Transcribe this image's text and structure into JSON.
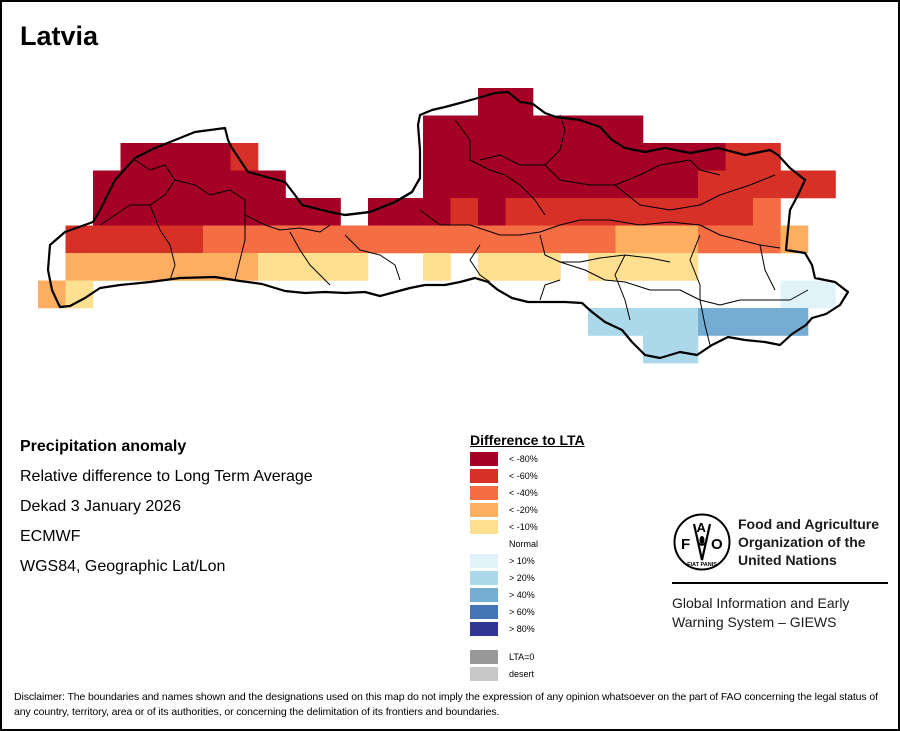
{
  "map": {
    "title": "Latvia",
    "grid_cols": 30,
    "grid_rows": 10,
    "class_colors": {
      "lt80": "#a50026",
      "lt60": "#d73027",
      "lt40": "#f46d43",
      "lt20": "#fdae61",
      "lt10": "#fee090",
      "gt10": "#e0f3f8",
      "gt20": "#abd9e9",
      "gt40": "#74add1",
      "gt60": "#4575b4",
      "gt80": "#313695",
      "lta0": "#999999",
      "desert": "#c8c8c8"
    },
    "cells": [
      {
        "row": 0,
        "cols": [
          16,
          17
        ],
        "class": "lt80"
      },
      {
        "row": 1,
        "cols": [
          14,
          21
        ],
        "class": "lt80"
      },
      {
        "row": 2,
        "cols": [
          3,
          6
        ],
        "class": "lt80"
      },
      {
        "row": 2,
        "cols": [
          7,
          7
        ],
        "class": "lt60"
      },
      {
        "row": 2,
        "cols": [
          14,
          24
        ],
        "class": "lt80"
      },
      {
        "row": 2,
        "cols": [
          25,
          26
        ],
        "class": "lt60"
      },
      {
        "row": 3,
        "cols": [
          2,
          8
        ],
        "class": "lt80"
      },
      {
        "row": 3,
        "cols": [
          14,
          23
        ],
        "class": "lt80"
      },
      {
        "row": 3,
        "cols": [
          24,
          28
        ],
        "class": "lt60"
      },
      {
        "row": 4,
        "cols": [
          2,
          10
        ],
        "class": "lt80"
      },
      {
        "row": 4,
        "cols": [
          12,
          14
        ],
        "class": "lt80"
      },
      {
        "row": 4,
        "cols": [
          15,
          15
        ],
        "class": "lt60"
      },
      {
        "row": 4,
        "cols": [
          16,
          16
        ],
        "class": "lt80"
      },
      {
        "row": 4,
        "cols": [
          17,
          25
        ],
        "class": "lt60"
      },
      {
        "row": 4,
        "cols": [
          26,
          26
        ],
        "class": "lt40"
      },
      {
        "row": 5,
        "cols": [
          1,
          5
        ],
        "class": "lt60"
      },
      {
        "row": 5,
        "cols": [
          6,
          20
        ],
        "class": "lt40"
      },
      {
        "row": 5,
        "cols": [
          21,
          23
        ],
        "class": "lt20"
      },
      {
        "row": 5,
        "cols": [
          24,
          26
        ],
        "class": "lt40"
      },
      {
        "row": 5,
        "cols": [
          27,
          27
        ],
        "class": "lt20"
      },
      {
        "row": 6,
        "cols": [
          1,
          7
        ],
        "class": "lt20"
      },
      {
        "row": 6,
        "cols": [
          8,
          11
        ],
        "class": "lt10"
      },
      {
        "row": 6,
        "cols": [
          14,
          14
        ],
        "class": "lt10"
      },
      {
        "row": 6,
        "cols": [
          16,
          18
        ],
        "class": "lt10"
      },
      {
        "row": 6,
        "cols": [
          20,
          23
        ],
        "class": "lt10"
      },
      {
        "row": 7,
        "cols": [
          0,
          0
        ],
        "class": "lt20"
      },
      {
        "row": 7,
        "cols": [
          1,
          1
        ],
        "class": "lt10"
      },
      {
        "row": 7,
        "cols": [
          27,
          28
        ],
        "class": "gt10"
      },
      {
        "row": 8,
        "cols": [
          20,
          23
        ],
        "class": "gt20"
      },
      {
        "row": 8,
        "cols": [
          24,
          27
        ],
        "class": "gt40"
      },
      {
        "row": 9,
        "cols": [
          22,
          23
        ],
        "class": "gt20"
      }
    ]
  },
  "info": {
    "heading": "Precipitation anomaly",
    "subtitle": "Relative difference to Long Term Average",
    "period": "Dekad 3 January 2026",
    "source": "ECMWF",
    "projection": "WGS84, Geographic Lat/Lon"
  },
  "legend": {
    "title": "Difference to LTA",
    "items": [
      {
        "label": "< -80%",
        "color": "#a50026"
      },
      {
        "label": "< -60%",
        "color": "#d73027"
      },
      {
        "label": "< -40%",
        "color": "#f46d43"
      },
      {
        "label": "< -20%",
        "color": "#fdae61"
      },
      {
        "label": "< -10%",
        "color": "#fee090"
      },
      {
        "label": "Normal",
        "color": null
      },
      {
        "label": "> 10%",
        "color": "#e0f3f8"
      },
      {
        "label": "> 20%",
        "color": "#abd9e9"
      },
      {
        "label": "> 40%",
        "color": "#74add1"
      },
      {
        "label": "> 60%",
        "color": "#4575b4"
      },
      {
        "label": "> 80%",
        "color": "#313695"
      },
      {
        "label": "LTA=0",
        "color": "#999999"
      },
      {
        "label": "desert",
        "color": "#c8c8c8"
      }
    ]
  },
  "fao": {
    "logo_letters": [
      "F",
      "A",
      "O"
    ],
    "logo_motto": "FIAT PANIS",
    "name_lines": [
      "Food and Agriculture",
      "Organization of the",
      "United Nations"
    ],
    "giews_lines": [
      "Global Information and Early",
      "Warning System – GIEWS"
    ]
  },
  "disclaimer": "Disclaimer: The boundaries and names shown and the designations used on this map do not imply the expression of any opinion whatsoever on the part of FAO concerning the legal status of any country, territory, area or of its authorities, or concerning the delimitation of its frontiers and boundaries."
}
